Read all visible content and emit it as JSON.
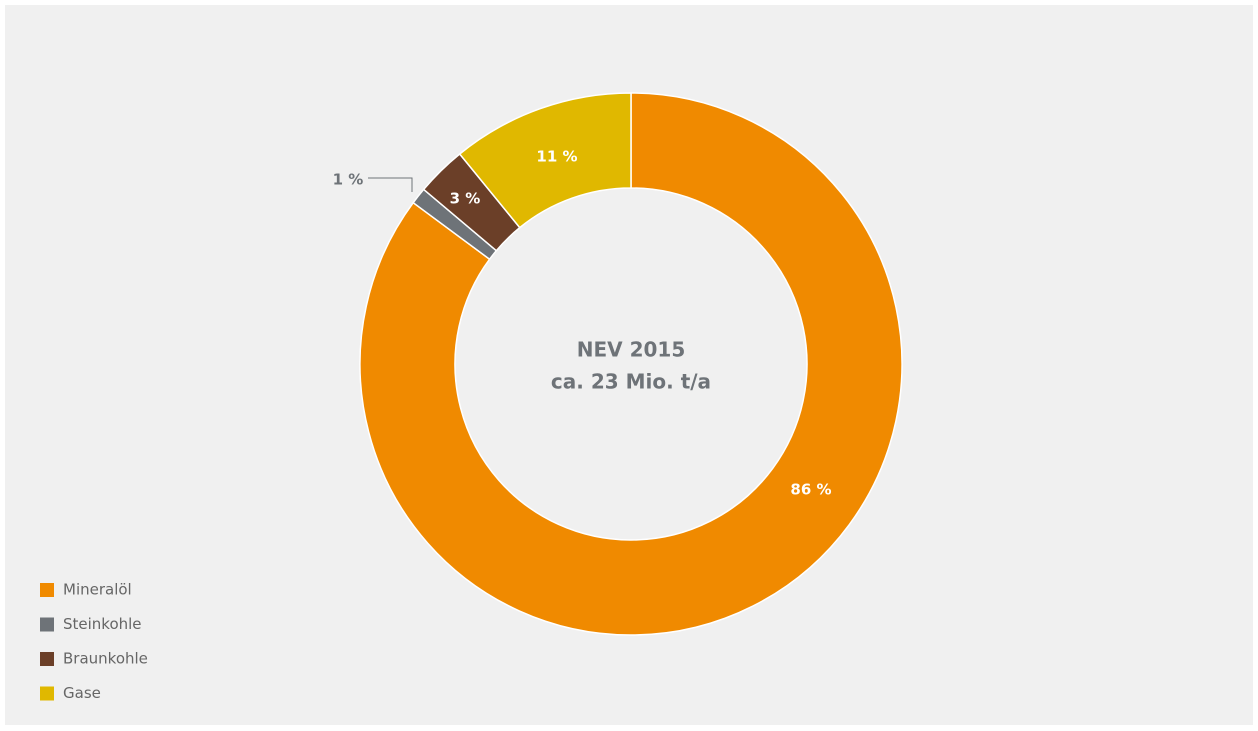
{
  "chart_data": {
    "type": "donut",
    "title": "NEV 2015",
    "subtitle": "ca. 23 Mio. t/a",
    "categories": [
      "Mineralöl",
      "Steinkohle",
      "Braunkohle",
      "Gase"
    ],
    "values": [
      86,
      1,
      3,
      11
    ],
    "value_labels": [
      "86 %",
      "1 %",
      "3 %",
      "11 %"
    ],
    "colors": [
      "#f08a00",
      "#6e7378",
      "#6b3f28",
      "#e0b800"
    ],
    "legend": "lower left"
  }
}
